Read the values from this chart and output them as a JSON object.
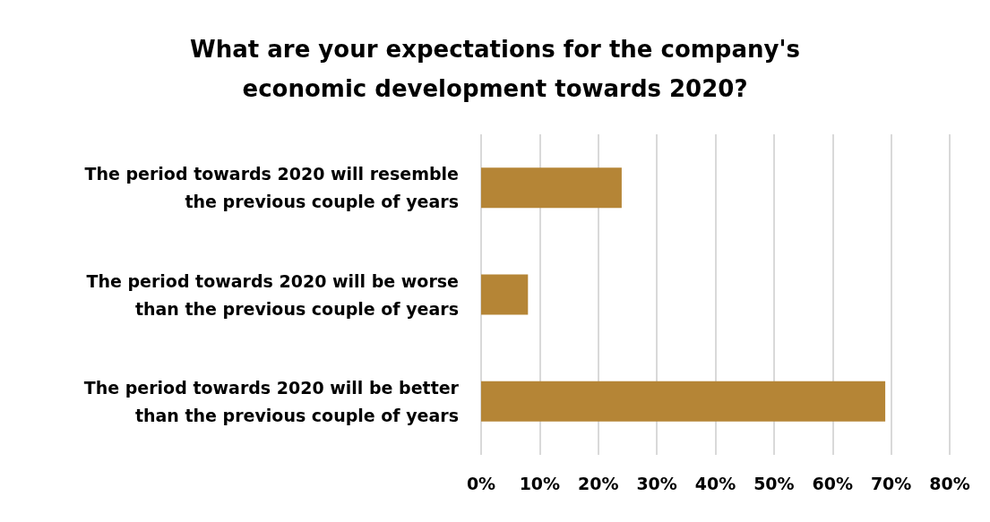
{
  "chart_data": {
    "type": "bar",
    "orientation": "horizontal",
    "title": "What are your expectations for the company's\neconomic development towards 2020?",
    "categories": [
      "The period towards 2020 will resemble\nthe previous couple of years",
      "The period towards 2020 will be worse\nthan the previous couple of years",
      "The period towards 2020 will be better\nthan the previous couple of years"
    ],
    "values": [
      24,
      8,
      69
    ],
    "color": "#b58536",
    "xlim": [
      0,
      80
    ],
    "xticks": [
      {
        "value": 0,
        "label": "0%"
      },
      {
        "value": 10,
        "label": "10%"
      },
      {
        "value": 20,
        "label": "20%"
      },
      {
        "value": 30,
        "label": "30%"
      },
      {
        "value": 40,
        "label": "40%"
      },
      {
        "value": 50,
        "label": "50%"
      },
      {
        "value": 60,
        "label": "60%"
      },
      {
        "value": 70,
        "label": "70%"
      },
      {
        "value": 80,
        "label": "80%"
      }
    ],
    "grid": "x"
  }
}
